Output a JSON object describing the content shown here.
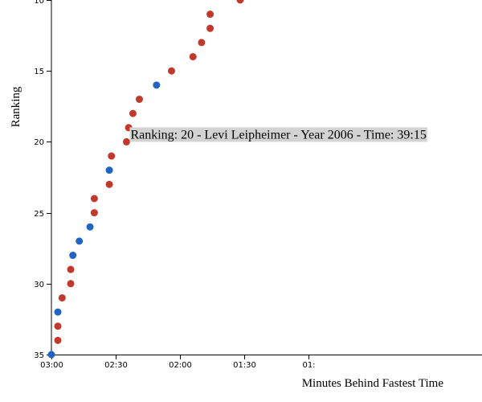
{
  "chart_data": {
    "type": "scatter",
    "title": "",
    "xlabel": "Minutes Behind Fastest Time",
    "ylabel": "Ranking",
    "x_unit": "seconds behind fastest",
    "xlim": [
      0,
      200
    ],
    "ylim": [
      35,
      10
    ],
    "y_reversed": true,
    "grid": false,
    "x_ticks": [
      {
        "value": 0,
        "label": "03:00"
      },
      {
        "value": 30,
        "label": "02:30"
      },
      {
        "value": 60,
        "label": "02:00"
      },
      {
        "value": 90,
        "label": "01:30"
      },
      {
        "value": 120,
        "label": "01:"
      }
    ],
    "y_ticks": [
      10,
      15,
      20,
      25,
      30,
      35
    ],
    "colors": {
      "doping": "#c0392b",
      "no_doping": "#2264c4"
    },
    "points": [
      {
        "x": 88,
        "y": 10,
        "color": "doping"
      },
      {
        "x": 74,
        "y": 11,
        "color": "doping"
      },
      {
        "x": 74,
        "y": 12,
        "color": "doping"
      },
      {
        "x": 70,
        "y": 13,
        "color": "doping"
      },
      {
        "x": 66,
        "y": 14,
        "color": "doping"
      },
      {
        "x": 56,
        "y": 15,
        "color": "doping"
      },
      {
        "x": 49,
        "y": 16,
        "color": "no_doping"
      },
      {
        "x": 41,
        "y": 17,
        "color": "doping"
      },
      {
        "x": 38,
        "y": 18,
        "color": "doping"
      },
      {
        "x": 36,
        "y": 19,
        "color": "doping"
      },
      {
        "x": 35,
        "y": 20,
        "color": "doping"
      },
      {
        "x": 28,
        "y": 21,
        "color": "doping"
      },
      {
        "x": 27,
        "y": 22,
        "color": "no_doping"
      },
      {
        "x": 27,
        "y": 23,
        "color": "doping"
      },
      {
        "x": 20,
        "y": 24,
        "color": "doping"
      },
      {
        "x": 20,
        "y": 25,
        "color": "doping"
      },
      {
        "x": 18,
        "y": 26,
        "color": "no_doping"
      },
      {
        "x": 13,
        "y": 27,
        "color": "no_doping"
      },
      {
        "x": 10,
        "y": 28,
        "color": "no_doping"
      },
      {
        "x": 9,
        "y": 29,
        "color": "doping"
      },
      {
        "x": 9,
        "y": 30,
        "color": "doping"
      },
      {
        "x": 5,
        "y": 31,
        "color": "doping"
      },
      {
        "x": 3,
        "y": 32,
        "color": "no_doping"
      },
      {
        "x": 3,
        "y": 33,
        "color": "doping"
      },
      {
        "x": 3,
        "y": 34,
        "color": "doping"
      },
      {
        "x": 0,
        "y": 35,
        "color": "no_doping"
      }
    ],
    "tooltip": {
      "text": "Ranking: 20 - Levi Leipheimer - Year 2006 - Time: 39:15",
      "ranking": 20,
      "x": 35
    }
  }
}
